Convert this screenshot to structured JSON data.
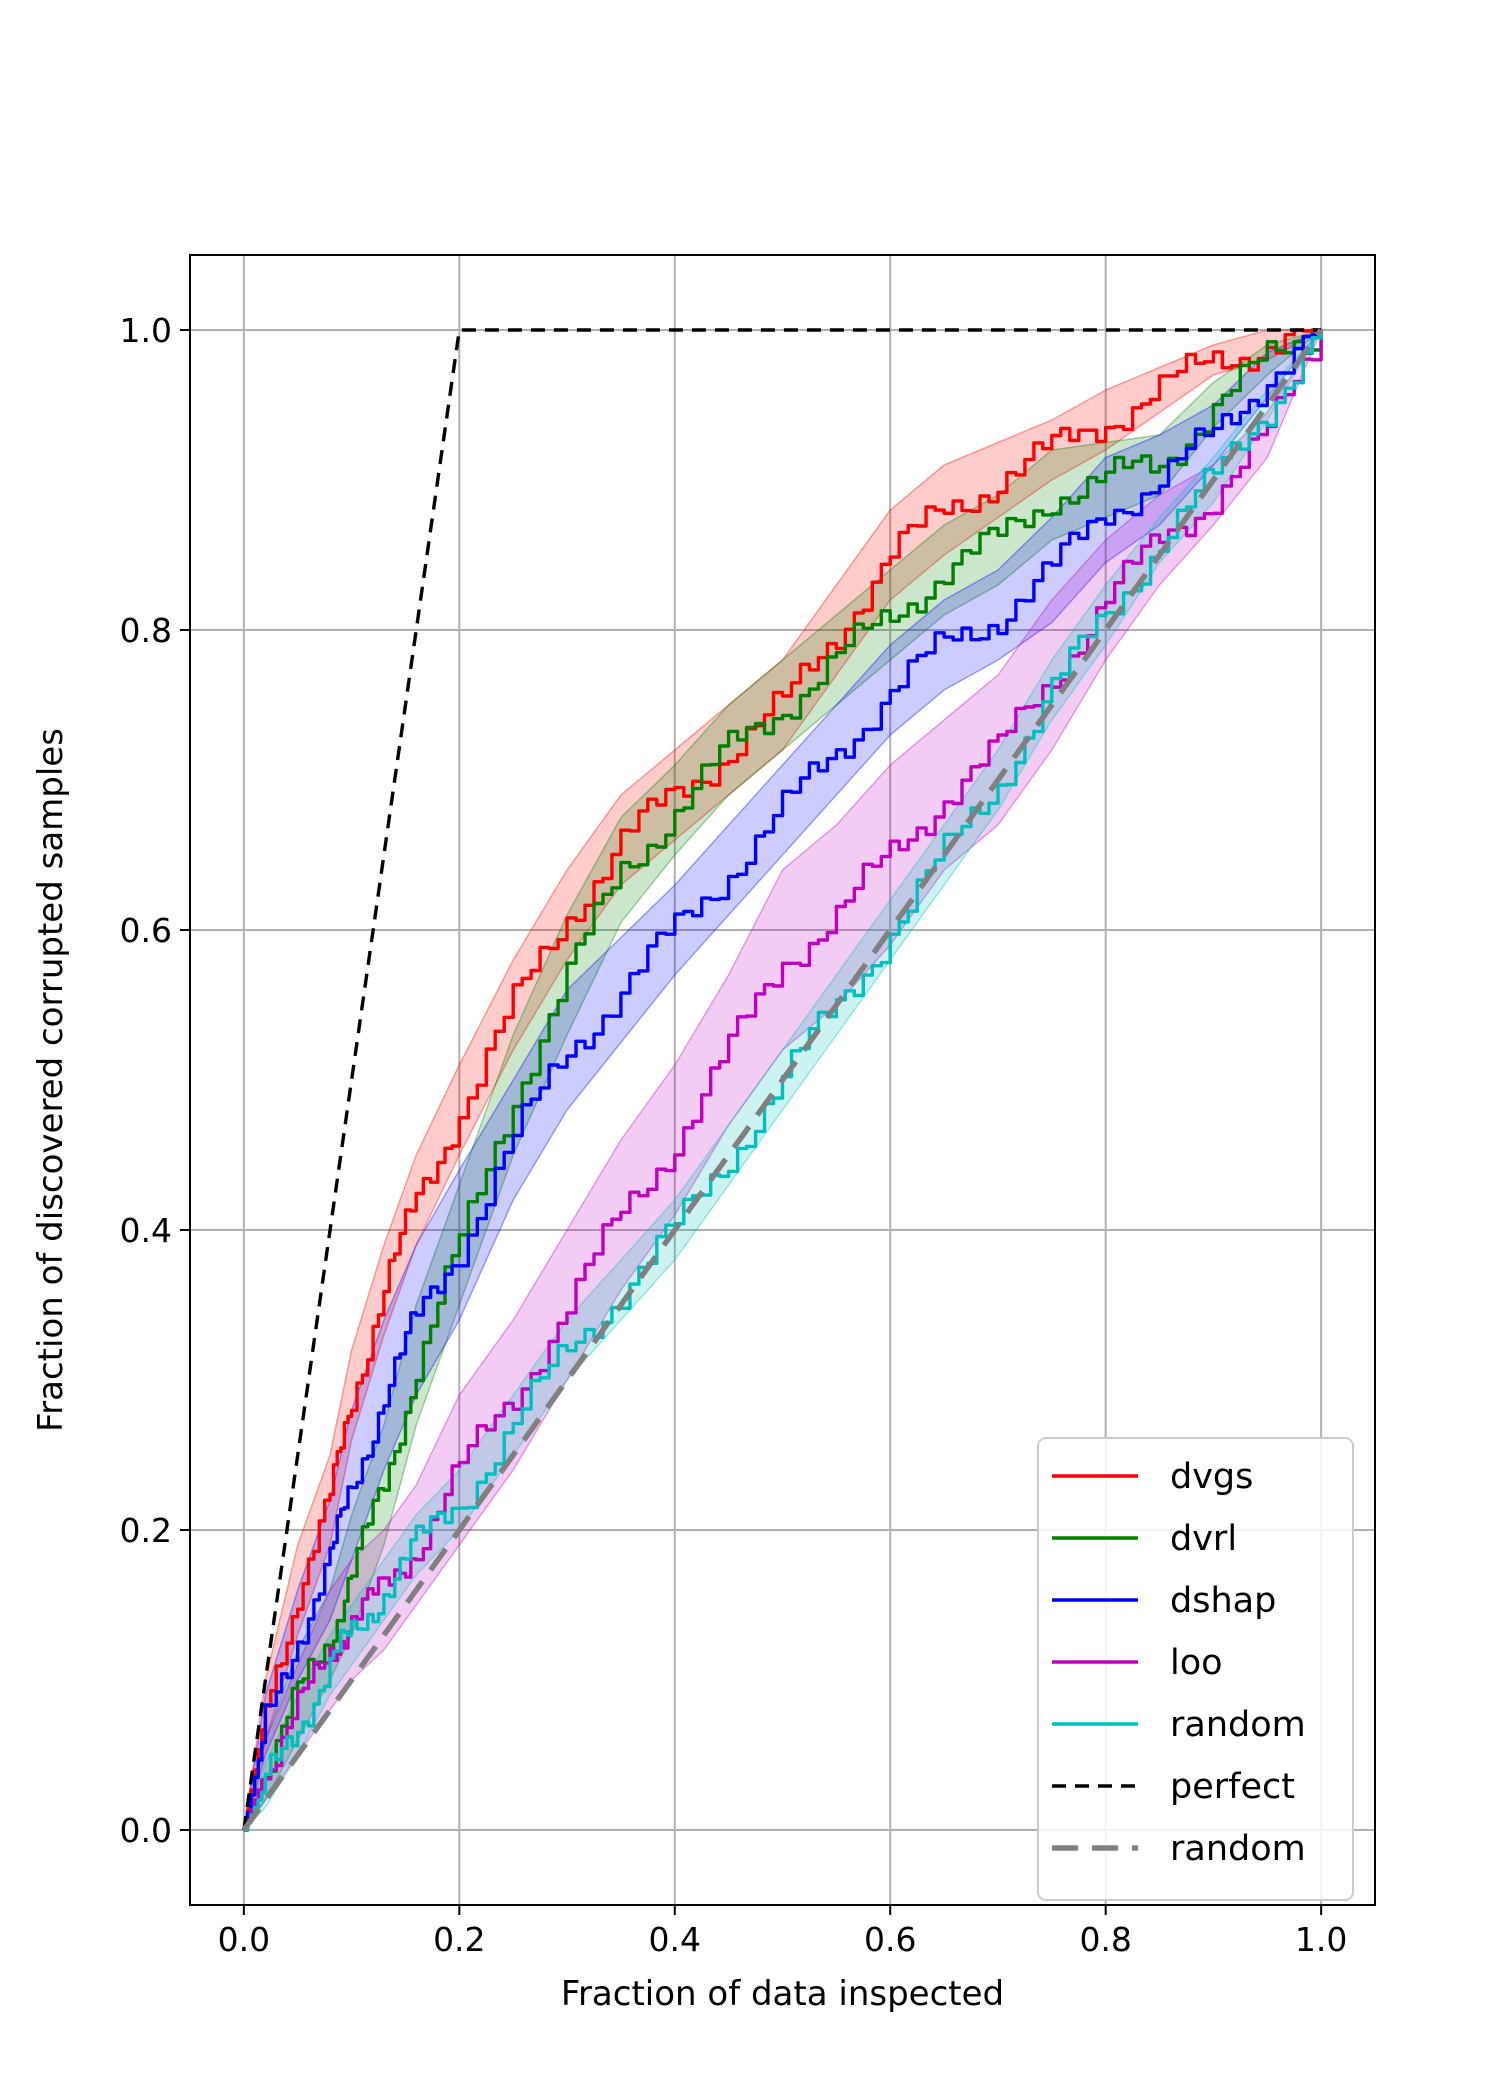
{
  "chart_data": {
    "type": "line",
    "title": "",
    "xlabel": "Fraction of data inspected",
    "ylabel": "Fraction of discovered corrupted samples",
    "xlim": [
      -0.05,
      1.05
    ],
    "ylim": [
      -0.05,
      1.05
    ],
    "xticks": [
      0.0,
      0.2,
      0.4,
      0.6,
      0.8,
      1.0
    ],
    "yticks": [
      0.0,
      0.2,
      0.4,
      0.6,
      0.8,
      1.0
    ],
    "xtick_labels": [
      "0.0",
      "0.2",
      "0.4",
      "0.6",
      "0.8",
      "1.0"
    ],
    "ytick_labels": [
      "0.0",
      "0.2",
      "0.4",
      "0.6",
      "0.8",
      "1.0"
    ],
    "grid": true,
    "legend_position": "bottom-right",
    "series": [
      {
        "name": "dvgs",
        "color": "#ff0000",
        "style": "solid",
        "band": true,
        "x": [
          0,
          0.02,
          0.05,
          0.08,
          0.1,
          0.13,
          0.16,
          0.2,
          0.25,
          0.3,
          0.35,
          0.4,
          0.45,
          0.5,
          0.55,
          0.6,
          0.65,
          0.7,
          0.75,
          0.8,
          0.85,
          0.9,
          0.95,
          1.0
        ],
        "y": [
          0,
          0.08,
          0.16,
          0.22,
          0.29,
          0.36,
          0.42,
          0.48,
          0.55,
          0.61,
          0.66,
          0.69,
          0.72,
          0.75,
          0.8,
          0.85,
          0.88,
          0.9,
          0.92,
          0.94,
          0.96,
          0.98,
          0.99,
          1.0
        ],
        "band_half_width": [
          0,
          0.02,
          0.03,
          0.03,
          0.03,
          0.03,
          0.03,
          0.03,
          0.03,
          0.03,
          0.03,
          0.03,
          0.03,
          0.03,
          0.03,
          0.03,
          0.03,
          0.025,
          0.02,
          0.02,
          0.015,
          0.01,
          0.01,
          0
        ]
      },
      {
        "name": "dvrl",
        "color": "#008000",
        "style": "solid",
        "band": true,
        "x": [
          0,
          0.02,
          0.05,
          0.08,
          0.1,
          0.13,
          0.16,
          0.2,
          0.25,
          0.3,
          0.35,
          0.4,
          0.45,
          0.5,
          0.55,
          0.6,
          0.65,
          0.7,
          0.75,
          0.8,
          0.85,
          0.9,
          0.95,
          1.0
        ],
        "y": [
          0,
          0.04,
          0.09,
          0.13,
          0.17,
          0.23,
          0.31,
          0.39,
          0.49,
          0.57,
          0.64,
          0.68,
          0.72,
          0.75,
          0.78,
          0.81,
          0.84,
          0.86,
          0.89,
          0.9,
          0.91,
          0.95,
          0.98,
          1.0
        ],
        "band_half_width": [
          0,
          0.02,
          0.03,
          0.03,
          0.04,
          0.04,
          0.04,
          0.04,
          0.04,
          0.04,
          0.035,
          0.03,
          0.03,
          0.03,
          0.03,
          0.03,
          0.03,
          0.03,
          0.03,
          0.025,
          0.02,
          0.015,
          0.01,
          0
        ]
      },
      {
        "name": "dshap",
        "color": "#0000ff",
        "style": "solid",
        "band": true,
        "x": [
          0,
          0.02,
          0.05,
          0.08,
          0.1,
          0.13,
          0.16,
          0.2,
          0.25,
          0.3,
          0.35,
          0.4,
          0.45,
          0.5,
          0.55,
          0.6,
          0.65,
          0.7,
          0.75,
          0.8,
          0.85,
          0.9,
          0.95,
          1.0
        ],
        "y": [
          0,
          0.07,
          0.13,
          0.18,
          0.23,
          0.29,
          0.34,
          0.39,
          0.46,
          0.52,
          0.56,
          0.6,
          0.64,
          0.68,
          0.72,
          0.76,
          0.79,
          0.81,
          0.84,
          0.88,
          0.9,
          0.93,
          0.97,
          1.0
        ],
        "band_half_width": [
          0,
          0.02,
          0.03,
          0.04,
          0.05,
          0.05,
          0.05,
          0.05,
          0.04,
          0.04,
          0.035,
          0.03,
          0.03,
          0.03,
          0.03,
          0.03,
          0.03,
          0.03,
          0.035,
          0.035,
          0.03,
          0.02,
          0.015,
          0
        ]
      },
      {
        "name": "loo",
        "color": "#bf00bf",
        "style": "solid",
        "band": true,
        "x": [
          0,
          0.02,
          0.05,
          0.08,
          0.1,
          0.13,
          0.16,
          0.2,
          0.25,
          0.3,
          0.35,
          0.4,
          0.45,
          0.5,
          0.55,
          0.6,
          0.65,
          0.7,
          0.75,
          0.8,
          0.85,
          0.9,
          0.95,
          1.0
        ],
        "y": [
          0,
          0.04,
          0.08,
          0.12,
          0.14,
          0.16,
          0.19,
          0.24,
          0.29,
          0.35,
          0.41,
          0.46,
          0.52,
          0.58,
          0.61,
          0.65,
          0.69,
          0.72,
          0.77,
          0.82,
          0.86,
          0.89,
          0.93,
          1.0
        ],
        "band_half_width": [
          0,
          0.02,
          0.03,
          0.04,
          0.04,
          0.04,
          0.04,
          0.05,
          0.05,
          0.05,
          0.05,
          0.05,
          0.05,
          0.06,
          0.06,
          0.06,
          0.05,
          0.05,
          0.05,
          0.04,
          0.03,
          0.02,
          0.015,
          0
        ]
      },
      {
        "name": "random",
        "color": "#00bfbf",
        "style": "solid",
        "band": true,
        "x": [
          0,
          0.02,
          0.05,
          0.08,
          0.1,
          0.13,
          0.16,
          0.2,
          0.25,
          0.3,
          0.35,
          0.4,
          0.45,
          0.5,
          0.55,
          0.6,
          0.65,
          0.7,
          0.75,
          0.8,
          0.85,
          0.9,
          0.95,
          1.0
        ],
        "y": [
          0,
          0.03,
          0.07,
          0.11,
          0.13,
          0.16,
          0.19,
          0.22,
          0.27,
          0.32,
          0.36,
          0.4,
          0.45,
          0.5,
          0.55,
          0.6,
          0.65,
          0.7,
          0.76,
          0.81,
          0.86,
          0.9,
          0.95,
          1.0
        ],
        "band_half_width": [
          0,
          0.015,
          0.02,
          0.02,
          0.02,
          0.02,
          0.02,
          0.02,
          0.02,
          0.02,
          0.02,
          0.02,
          0.02,
          0.02,
          0.02,
          0.02,
          0.02,
          0.02,
          0.02,
          0.02,
          0.015,
          0.015,
          0.01,
          0
        ]
      },
      {
        "name": "perfect",
        "color": "#000000",
        "style": "dashed",
        "band": false,
        "x": [
          0,
          0.2,
          1.0
        ],
        "y": [
          0,
          1.0,
          1.0
        ]
      },
      {
        "name": "random",
        "color": "#808080",
        "style": "dashed-thick",
        "band": false,
        "x": [
          0,
          1.0
        ],
        "y": [
          0,
          1.0
        ]
      }
    ]
  }
}
